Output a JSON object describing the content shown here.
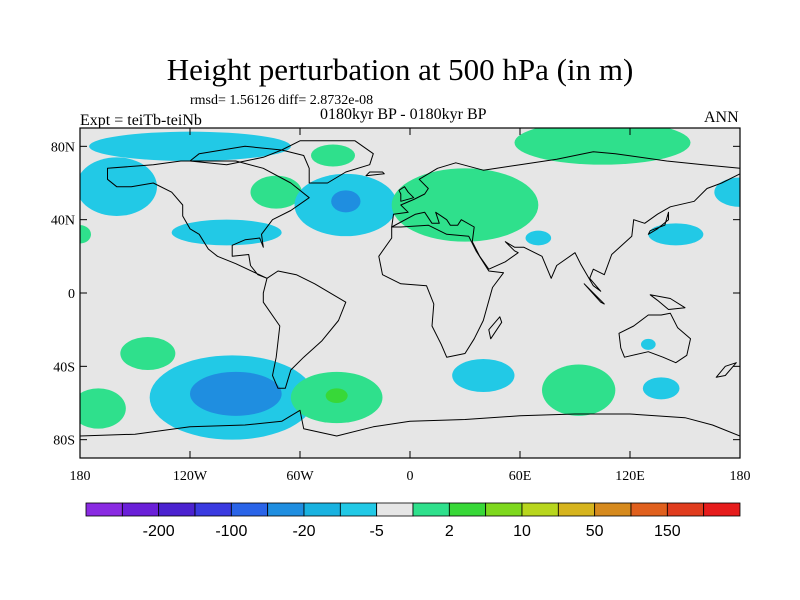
{
  "title": "Height perturbation at 500 hPa (in m)",
  "stats": "rmsd= 1.56126 diff= 2.8732e-08",
  "experiment": "Expt = teiTb-teiNb",
  "period": "0180kyr BP - 0180kyr BP",
  "season": "ANN",
  "axes": {
    "lat_labels": [
      "80N",
      "40N",
      "0",
      "40S",
      "80S"
    ],
    "lat_values": [
      80,
      40,
      0,
      -40,
      -80
    ],
    "lon_labels": [
      "180",
      "120W",
      "60W",
      "0",
      "60E",
      "120E",
      "180"
    ],
    "lon_values": [
      -180,
      -120,
      -60,
      0,
      60,
      120,
      180
    ],
    "lon_range": [
      -180,
      180
    ],
    "lat_range": [
      -90,
      90
    ]
  },
  "colorbar": {
    "colors": [
      "#8a2be2",
      "#6a1fd8",
      "#4b22d0",
      "#3a3ae0",
      "#2a64e8",
      "#1f8ee0",
      "#19b2e0",
      "#22c9e6",
      "#e6e6e6",
      "#2fe08c",
      "#38d838",
      "#7ed81e",
      "#b8d61e",
      "#d6b41e",
      "#d68a1e",
      "#e0601e",
      "#e03c1e",
      "#e61c1c"
    ],
    "tick_labels": [
      "-200",
      "-100",
      "-20",
      "-5",
      "2",
      "10",
      "50",
      "150"
    ],
    "tick_after_box": [
      1,
      3,
      5,
      7,
      9,
      11,
      13,
      15
    ]
  },
  "fields": [
    {
      "lon": -160,
      "lat": 58,
      "rlon": 22,
      "rlat": 16,
      "color": "#22c9e6"
    },
    {
      "lon": -120,
      "lat": 80,
      "rlon": 55,
      "rlat": 8,
      "color": "#22c9e6"
    },
    {
      "lon": -100,
      "lat": 33,
      "rlon": 30,
      "rlat": 7,
      "color": "#22c9e6"
    },
    {
      "lon": -73,
      "lat": 55,
      "rlon": 14,
      "rlat": 9,
      "color": "#2fe08c"
    },
    {
      "lon": -42,
      "lat": 75,
      "rlon": 12,
      "rlat": 6,
      "color": "#2fe08c"
    },
    {
      "lon": -35,
      "lat": 48,
      "rlon": 28,
      "rlat": 17,
      "color": "#22c9e6"
    },
    {
      "lon": -35,
      "lat": 50,
      "rlon": 8,
      "rlat": 6,
      "color": "#1f8ee0"
    },
    {
      "lon": 30,
      "lat": 48,
      "rlon": 40,
      "rlat": 20,
      "color": "#2fe08c"
    },
    {
      "lon": 70,
      "lat": 30,
      "rlon": 7,
      "rlat": 4,
      "color": "#22c9e6"
    },
    {
      "lon": 105,
      "lat": 82,
      "rlon": 48,
      "rlat": 12,
      "color": "#2fe08c"
    },
    {
      "lon": 180,
      "lat": 55,
      "rlon": 14,
      "rlat": 8,
      "color": "#22c9e6"
    },
    {
      "lon": 145,
      "lat": 32,
      "rlon": 15,
      "rlat": 6,
      "color": "#22c9e6"
    },
    {
      "lon": -180,
      "lat": 32,
      "rlon": 6,
      "rlat": 5,
      "color": "#2fe08c"
    },
    {
      "lon": -143,
      "lat": -33,
      "rlon": 15,
      "rlat": 9,
      "color": "#2fe08c"
    },
    {
      "lon": -170,
      "lat": -63,
      "rlon": 15,
      "rlat": 11,
      "color": "#2fe08c"
    },
    {
      "lon": -97,
      "lat": -57,
      "rlon": 45,
      "rlat": 23,
      "color": "#22c9e6"
    },
    {
      "lon": -95,
      "lat": -55,
      "rlon": 25,
      "rlat": 12,
      "color": "#1f8ee0"
    },
    {
      "lon": -40,
      "lat": -57,
      "rlon": 25,
      "rlat": 14,
      "color": "#2fe08c"
    },
    {
      "lon": -40,
      "lat": -56,
      "rlon": 6,
      "rlat": 4,
      "color": "#38d838"
    },
    {
      "lon": 40,
      "lat": -45,
      "rlon": 17,
      "rlat": 9,
      "color": "#22c9e6"
    },
    {
      "lon": 92,
      "lat": -53,
      "rlon": 20,
      "rlat": 14,
      "color": "#2fe08c"
    },
    {
      "lon": 137,
      "lat": -52,
      "rlon": 10,
      "rlat": 6,
      "color": "#22c9e6"
    },
    {
      "lon": 130,
      "lat": -28,
      "rlon": 4,
      "rlat": 3,
      "color": "#22c9e6"
    }
  ],
  "land": [
    [
      [
        -165,
        68
      ],
      [
        -140,
        70
      ],
      [
        -125,
        72
      ],
      [
        -95,
        72
      ],
      [
        -80,
        68
      ],
      [
        -65,
        60
      ],
      [
        -55,
        52
      ],
      [
        -65,
        45
      ],
      [
        -75,
        40
      ],
      [
        -81,
        32
      ],
      [
        -80,
        25
      ],
      [
        -82,
        30
      ],
      [
        -90,
        29
      ],
      [
        -97,
        26
      ],
      [
        -97,
        20
      ],
      [
        -88,
        21
      ],
      [
        -87,
        15
      ],
      [
        -83,
        10
      ],
      [
        -78,
        8
      ],
      [
        -95,
        16
      ],
      [
        -105,
        20
      ],
      [
        -110,
        24
      ],
      [
        -115,
        32
      ],
      [
        -120,
        35
      ],
      [
        -124,
        42
      ],
      [
        -124,
        48
      ],
      [
        -130,
        55
      ],
      [
        -140,
        60
      ],
      [
        -152,
        58
      ],
      [
        -160,
        58
      ],
      [
        -165,
        62
      ]
    ],
    [
      [
        -78,
        8
      ],
      [
        -72,
        12
      ],
      [
        -62,
        10
      ],
      [
        -52,
        5
      ],
      [
        -35,
        -5
      ],
      [
        -39,
        -15
      ],
      [
        -48,
        -26
      ],
      [
        -58,
        -35
      ],
      [
        -65,
        -42
      ],
      [
        -68,
        -52
      ],
      [
        -72,
        -52
      ],
      [
        -75,
        -45
      ],
      [
        -73,
        -35
      ],
      [
        -71,
        -18
      ],
      [
        -80,
        -5
      ],
      [
        -80,
        0
      ]
    ],
    [
      [
        -55,
        60
      ],
      [
        -45,
        60
      ],
      [
        -35,
        66
      ],
      [
        -22,
        70
      ],
      [
        -20,
        76
      ],
      [
        -30,
        83
      ],
      [
        -60,
        83
      ],
      [
        -70,
        78
      ],
      [
        -58,
        75
      ],
      [
        -55,
        68
      ]
    ],
    [
      [
        -10,
        36
      ],
      [
        -5,
        36
      ],
      [
        10,
        37
      ],
      [
        20,
        32
      ],
      [
        32,
        31
      ],
      [
        36,
        23
      ],
      [
        43,
        12
      ],
      [
        51,
        11
      ],
      [
        45,
        3
      ],
      [
        40,
        -15
      ],
      [
        35,
        -25
      ],
      [
        30,
        -33
      ],
      [
        20,
        -35
      ],
      [
        17,
        -28
      ],
      [
        12,
        -18
      ],
      [
        13,
        -6
      ],
      [
        9,
        4
      ],
      [
        -5,
        5
      ],
      [
        -15,
        10
      ],
      [
        -17,
        20
      ],
      [
        -10,
        30
      ]
    ],
    [
      [
        -10,
        36
      ],
      [
        -9,
        43
      ],
      [
        -1,
        44
      ],
      [
        -5,
        48
      ],
      [
        2,
        51
      ],
      [
        8,
        54
      ],
      [
        10,
        57
      ],
      [
        5,
        62
      ],
      [
        15,
        68
      ],
      [
        25,
        71
      ],
      [
        40,
        67
      ],
      [
        60,
        70
      ],
      [
        80,
        73
      ],
      [
        100,
        77
      ],
      [
        112,
        76
      ],
      [
        140,
        72
      ],
      [
        160,
        70
      ],
      [
        180,
        68
      ],
      [
        180,
        65
      ],
      [
        170,
        60
      ],
      [
        162,
        57
      ],
      [
        155,
        50
      ],
      [
        142,
        47
      ],
      [
        135,
        43
      ],
      [
        128,
        38
      ],
      [
        122,
        40
      ],
      [
        121,
        31
      ],
      [
        110,
        21
      ],
      [
        106,
        10
      ],
      [
        100,
        13
      ],
      [
        98,
        8
      ],
      [
        104,
        1
      ],
      [
        100,
        4
      ],
      [
        93,
        16
      ],
      [
        90,
        22
      ],
      [
        80,
        15
      ],
      [
        77,
        8
      ],
      [
        72,
        20
      ],
      [
        62,
        25
      ],
      [
        57,
        25
      ],
      [
        52,
        28
      ],
      [
        57,
        23
      ],
      [
        59,
        22
      ],
      [
        52,
        17
      ],
      [
        43,
        13
      ],
      [
        38,
        20
      ],
      [
        34,
        28
      ],
      [
        35,
        36
      ],
      [
        28,
        40
      ],
      [
        26,
        37
      ],
      [
        22,
        37
      ],
      [
        20,
        40
      ],
      [
        14,
        44
      ],
      [
        16,
        38
      ],
      [
        12,
        38
      ],
      [
        8,
        44
      ],
      [
        3,
        43
      ]
    ],
    [
      [
        114,
        -22
      ],
      [
        122,
        -18
      ],
      [
        130,
        -12
      ],
      [
        137,
        -12
      ],
      [
        142,
        -11
      ],
      [
        146,
        -19
      ],
      [
        153,
        -25
      ],
      [
        151,
        -34
      ],
      [
        145,
        -38
      ],
      [
        138,
        -35
      ],
      [
        130,
        -32
      ],
      [
        117,
        -35
      ],
      [
        115,
        -30
      ]
    ],
    [
      [
        -180,
        -78
      ],
      [
        -150,
        -77
      ],
      [
        -120,
        -73
      ],
      [
        -90,
        -72
      ],
      [
        -70,
        -70
      ],
      [
        -60,
        -64
      ],
      [
        -58,
        -74
      ],
      [
        -40,
        -78
      ],
      [
        -20,
        -73
      ],
      [
        0,
        -70
      ],
      [
        30,
        -69
      ],
      [
        60,
        -67
      ],
      [
        90,
        -66
      ],
      [
        120,
        -66
      ],
      [
        150,
        -68
      ],
      [
        165,
        -72
      ],
      [
        180,
        -78
      ],
      [
        180,
        -90
      ],
      [
        -180,
        -90
      ]
    ],
    [
      [
        -5,
        50
      ],
      [
        2,
        52
      ],
      [
        -1,
        55
      ],
      [
        -3,
        58
      ],
      [
        -6,
        56
      ],
      [
        -5,
        54
      ]
    ],
    [
      [
        44,
        -25
      ],
      [
        50,
        -16
      ],
      [
        49,
        -13
      ],
      [
        43,
        -20
      ]
    ],
    [
      [
        -24,
        64
      ],
      [
        -14,
        65
      ],
      [
        -15,
        66
      ],
      [
        -22,
        66
      ]
    ],
    [
      [
        130,
        32
      ],
      [
        135,
        35
      ],
      [
        141,
        40
      ],
      [
        141,
        44
      ],
      [
        139,
        37
      ],
      [
        131,
        34
      ]
    ],
    [
      [
        95,
        5
      ],
      [
        106,
        -6
      ],
      [
        104,
        -5
      ]
    ],
    [
      [
        172,
        -40
      ],
      [
        178,
        -38
      ],
      [
        172,
        -45
      ],
      [
        167,
        -46
      ]
    ],
    [
      [
        131,
        -1
      ],
      [
        142,
        -3
      ],
      [
        150,
        -8
      ],
      [
        141,
        -9
      ],
      [
        135,
        -4
      ]
    ],
    [
      [
        -100,
        70
      ],
      [
        -80,
        74
      ],
      [
        -70,
        78
      ],
      [
        -90,
        80
      ],
      [
        -115,
        76
      ],
      [
        -120,
        72
      ]
    ]
  ]
}
